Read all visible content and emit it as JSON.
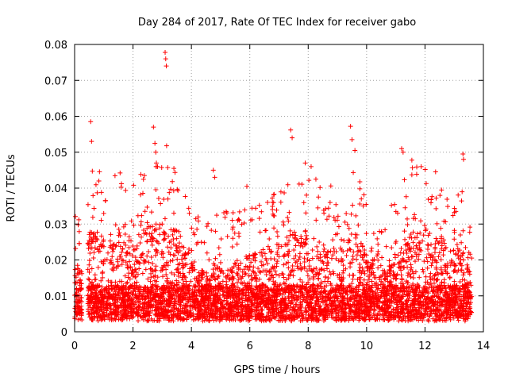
{
  "chart_data": {
    "type": "scatter",
    "title": "Day 284 of 2017, Rate Of TEC Index for receiver gabo",
    "xlabel": "GPS time / hours",
    "ylabel": "ROTI / TECUs",
    "xlim": [
      0,
      14
    ],
    "ylim": [
      0,
      0.08
    ],
    "x_ticks": [
      0,
      2,
      4,
      6,
      8,
      10,
      12,
      14
    ],
    "x_tick_labels": [
      "0",
      "2",
      "4",
      "6",
      "8",
      "10",
      "12",
      "14"
    ],
    "y_ticks": [
      0,
      0.01,
      0.02,
      0.03,
      0.04,
      0.05,
      0.06,
      0.07,
      0.08
    ],
    "y_tick_labels": [
      "0",
      "0.01",
      "0.02",
      "0.03",
      "0.04",
      "0.05",
      "0.06",
      "0.07",
      "0.08"
    ],
    "grid": true,
    "marker": "+",
    "marker_color": "#ff0000",
    "series": [
      {
        "name": "ROTI",
        "points": [
          [
            0.55,
            0.0585
          ],
          [
            0.58,
            0.053
          ],
          [
            2.7,
            0.057
          ],
          [
            2.75,
            0.0525
          ],
          [
            2.78,
            0.05
          ],
          [
            2.8,
            0.047
          ],
          [
            3.1,
            0.0778
          ],
          [
            3.12,
            0.076
          ],
          [
            3.14,
            0.074
          ],
          [
            3.15,
            0.0518
          ],
          [
            3.4,
            0.0455
          ],
          [
            4.75,
            0.045
          ],
          [
            4.8,
            0.043
          ],
          [
            7.4,
            0.0562
          ],
          [
            7.45,
            0.054
          ],
          [
            9.45,
            0.0572
          ],
          [
            9.5,
            0.0535
          ],
          [
            9.6,
            0.0505
          ],
          [
            11.2,
            0.051
          ],
          [
            11.25,
            0.05
          ],
          [
            11.55,
            0.0478
          ],
          [
            13.3,
            0.0495
          ],
          [
            13.32,
            0.048
          ],
          [
            5.9,
            0.0405
          ],
          [
            8.1,
            0.046
          ],
          [
            7.9,
            0.047
          ]
        ]
      }
    ]
  }
}
